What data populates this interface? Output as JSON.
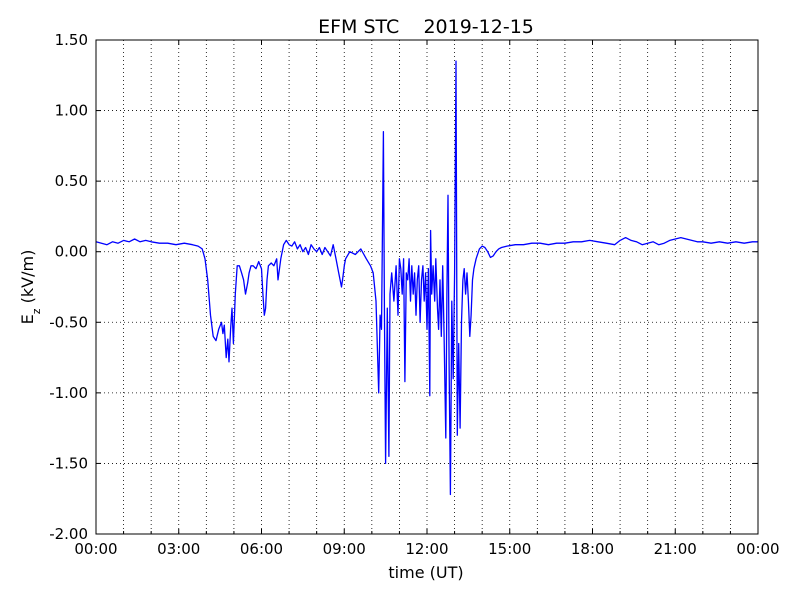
{
  "chart_data": {
    "type": "line",
    "title": "EFM STC    2019-12-15",
    "xlabel": "time (UT)",
    "ylabel_main": "E",
    "ylabel_sub": "z",
    "ylabel_rest": " (kV/m)",
    "xlim": [
      0,
      24
    ],
    "ylim": [
      -2.0,
      1.5
    ],
    "grid": true,
    "x_ticks": [
      {
        "v": 0,
        "label": "00:00"
      },
      {
        "v": 3,
        "label": "03:00"
      },
      {
        "v": 6,
        "label": "06:00"
      },
      {
        "v": 9,
        "label": "09:00"
      },
      {
        "v": 12,
        "label": "12:00"
      },
      {
        "v": 15,
        "label": "15:00"
      },
      {
        "v": 18,
        "label": "18:00"
      },
      {
        "v": 21,
        "label": "21:00"
      },
      {
        "v": 24,
        "label": "00:00"
      }
    ],
    "y_ticks": [
      {
        "v": 1.5,
        "label": "1.50"
      },
      {
        "v": 1.0,
        "label": "1.00"
      },
      {
        "v": 0.5,
        "label": "0.50"
      },
      {
        "v": 0.0,
        "label": "0.00"
      },
      {
        "v": -0.5,
        "label": "-0.50"
      },
      {
        "v": -1.0,
        "label": "-1.00"
      },
      {
        "v": -1.5,
        "label": "-1.50"
      },
      {
        "v": -2.0,
        "label": "-2.00"
      }
    ],
    "series": [
      {
        "color": "#0000ff",
        "points": [
          [
            0.0,
            0.07
          ],
          [
            0.2,
            0.06
          ],
          [
            0.4,
            0.05
          ],
          [
            0.6,
            0.07
          ],
          [
            0.8,
            0.06
          ],
          [
            1.0,
            0.08
          ],
          [
            1.2,
            0.07
          ],
          [
            1.4,
            0.09
          ],
          [
            1.6,
            0.07
          ],
          [
            1.8,
            0.08
          ],
          [
            2.0,
            0.07
          ],
          [
            2.3,
            0.06
          ],
          [
            2.6,
            0.06
          ],
          [
            2.9,
            0.05
          ],
          [
            3.2,
            0.06
          ],
          [
            3.5,
            0.05
          ],
          [
            3.7,
            0.04
          ],
          [
            3.85,
            0.02
          ],
          [
            3.95,
            -0.05
          ],
          [
            4.05,
            -0.2
          ],
          [
            4.15,
            -0.45
          ],
          [
            4.25,
            -0.6
          ],
          [
            4.35,
            -0.63
          ],
          [
            4.45,
            -0.55
          ],
          [
            4.55,
            -0.5
          ],
          [
            4.6,
            -0.58
          ],
          [
            4.65,
            -0.52
          ],
          [
            4.72,
            -0.75
          ],
          [
            4.78,
            -0.62
          ],
          [
            4.82,
            -0.78
          ],
          [
            4.88,
            -0.55
          ],
          [
            4.93,
            -0.4
          ],
          [
            4.98,
            -0.65
          ],
          [
            5.05,
            -0.3
          ],
          [
            5.12,
            -0.1
          ],
          [
            5.2,
            -0.1
          ],
          [
            5.28,
            -0.15
          ],
          [
            5.35,
            -0.2
          ],
          [
            5.42,
            -0.3
          ],
          [
            5.5,
            -0.22
          ],
          [
            5.55,
            -0.15
          ],
          [
            5.62,
            -0.1
          ],
          [
            5.7,
            -0.1
          ],
          [
            5.8,
            -0.12
          ],
          [
            5.9,
            -0.07
          ],
          [
            6.0,
            -0.12
          ],
          [
            6.05,
            -0.3
          ],
          [
            6.1,
            -0.45
          ],
          [
            6.15,
            -0.4
          ],
          [
            6.2,
            -0.2
          ],
          [
            6.25,
            -0.1
          ],
          [
            6.35,
            -0.08
          ],
          [
            6.45,
            -0.1
          ],
          [
            6.55,
            -0.05
          ],
          [
            6.6,
            -0.2
          ],
          [
            6.7,
            -0.05
          ],
          [
            6.8,
            0.05
          ],
          [
            6.9,
            0.08
          ],
          [
            7.0,
            0.05
          ],
          [
            7.1,
            0.04
          ],
          [
            7.2,
            0.07
          ],
          [
            7.3,
            0.02
          ],
          [
            7.4,
            0.05
          ],
          [
            7.5,
            0.0
          ],
          [
            7.6,
            0.03
          ],
          [
            7.7,
            -0.02
          ],
          [
            7.8,
            0.05
          ],
          [
            7.9,
            0.02
          ],
          [
            8.0,
            0.0
          ],
          [
            8.1,
            0.03
          ],
          [
            8.2,
            -0.02
          ],
          [
            8.3,
            0.03
          ],
          [
            8.4,
            0.0
          ],
          [
            8.5,
            -0.03
          ],
          [
            8.6,
            0.05
          ],
          [
            8.7,
            -0.05
          ],
          [
            8.8,
            -0.15
          ],
          [
            8.9,
            -0.25
          ],
          [
            8.95,
            -0.18
          ],
          [
            9.0,
            -0.1
          ],
          [
            9.05,
            -0.05
          ],
          [
            9.2,
            0.0
          ],
          [
            9.4,
            -0.02
          ],
          [
            9.6,
            0.02
          ],
          [
            9.8,
            -0.05
          ],
          [
            9.95,
            -0.1
          ],
          [
            10.05,
            -0.15
          ],
          [
            10.15,
            -0.35
          ],
          [
            10.25,
            -1.0
          ],
          [
            10.3,
            -0.45
          ],
          [
            10.35,
            -0.55
          ],
          [
            10.42,
            0.85
          ],
          [
            10.46,
            -0.5
          ],
          [
            10.5,
            -1.5
          ],
          [
            10.56,
            -0.4
          ],
          [
            10.62,
            -1.45
          ],
          [
            10.66,
            -0.3
          ],
          [
            10.72,
            -0.15
          ],
          [
            10.8,
            -0.35
          ],
          [
            10.88,
            -0.1
          ],
          [
            10.95,
            -0.45
          ],
          [
            11.0,
            -0.05
          ],
          [
            11.05,
            -0.12
          ],
          [
            11.1,
            -0.3
          ],
          [
            11.15,
            -0.05
          ],
          [
            11.2,
            -0.92
          ],
          [
            11.25,
            -0.15
          ],
          [
            11.3,
            -0.2
          ],
          [
            11.35,
            -0.05
          ],
          [
            11.4,
            -0.35
          ],
          [
            11.45,
            -0.1
          ],
          [
            11.5,
            -0.3
          ],
          [
            11.55,
            -0.15
          ],
          [
            11.6,
            -0.45
          ],
          [
            11.65,
            -0.2
          ],
          [
            11.7,
            -0.1
          ],
          [
            11.75,
            -0.5
          ],
          [
            11.8,
            -0.2
          ],
          [
            11.85,
            -0.1
          ],
          [
            11.9,
            -0.35
          ],
          [
            11.95,
            -0.15
          ],
          [
            12.0,
            -0.55
          ],
          [
            12.05,
            -0.12
          ],
          [
            12.1,
            -1.02
          ],
          [
            12.13,
            0.15
          ],
          [
            12.17,
            -0.3
          ],
          [
            12.22,
            -0.1
          ],
          [
            12.28,
            -0.35
          ],
          [
            12.32,
            -0.05
          ],
          [
            12.38,
            -0.4
          ],
          [
            12.42,
            -0.55
          ],
          [
            12.47,
            -0.2
          ],
          [
            12.52,
            -0.6
          ],
          [
            12.57,
            -0.1
          ],
          [
            12.62,
            -0.6
          ],
          [
            12.68,
            -1.32
          ],
          [
            12.72,
            -0.3
          ],
          [
            12.76,
            0.4
          ],
          [
            12.8,
            -0.8
          ],
          [
            12.85,
            -1.72
          ],
          [
            12.9,
            -0.35
          ],
          [
            12.95,
            -0.9
          ],
          [
            13.0,
            -0.15
          ],
          [
            13.05,
            1.35
          ],
          [
            13.1,
            -1.3
          ],
          [
            13.15,
            -0.65
          ],
          [
            13.2,
            -1.25
          ],
          [
            13.25,
            -0.5
          ],
          [
            13.3,
            -0.2
          ],
          [
            13.35,
            -0.12
          ],
          [
            13.4,
            -0.3
          ],
          [
            13.45,
            -0.15
          ],
          [
            13.5,
            -0.35
          ],
          [
            13.55,
            -0.6
          ],
          [
            13.6,
            -0.45
          ],
          [
            13.65,
            -0.2
          ],
          [
            13.7,
            -0.12
          ],
          [
            13.78,
            -0.05
          ],
          [
            13.9,
            0.02
          ],
          [
            14.0,
            0.04
          ],
          [
            14.1,
            0.03
          ],
          [
            14.2,
            0.0
          ],
          [
            14.3,
            -0.04
          ],
          [
            14.4,
            -0.03
          ],
          [
            14.5,
            0.0
          ],
          [
            14.6,
            0.02
          ],
          [
            14.7,
            0.03
          ],
          [
            14.9,
            0.04
          ],
          [
            15.2,
            0.05
          ],
          [
            15.5,
            0.05
          ],
          [
            15.8,
            0.06
          ],
          [
            16.1,
            0.06
          ],
          [
            16.4,
            0.05
          ],
          [
            16.7,
            0.06
          ],
          [
            17.0,
            0.06
          ],
          [
            17.3,
            0.07
          ],
          [
            17.6,
            0.07
          ],
          [
            17.9,
            0.08
          ],
          [
            18.2,
            0.07
          ],
          [
            18.5,
            0.06
          ],
          [
            18.8,
            0.05
          ],
          [
            19.0,
            0.08
          ],
          [
            19.2,
            0.1
          ],
          [
            19.4,
            0.08
          ],
          [
            19.6,
            0.07
          ],
          [
            19.8,
            0.05
          ],
          [
            20.0,
            0.06
          ],
          [
            20.2,
            0.07
          ],
          [
            20.4,
            0.05
          ],
          [
            20.6,
            0.06
          ],
          [
            20.8,
            0.08
          ],
          [
            21.0,
            0.09
          ],
          [
            21.2,
            0.1
          ],
          [
            21.4,
            0.09
          ],
          [
            21.6,
            0.08
          ],
          [
            21.8,
            0.07
          ],
          [
            22.0,
            0.07
          ],
          [
            22.3,
            0.06
          ],
          [
            22.6,
            0.07
          ],
          [
            22.9,
            0.06
          ],
          [
            23.2,
            0.07
          ],
          [
            23.5,
            0.06
          ],
          [
            23.8,
            0.07
          ],
          [
            24.0,
            0.07
          ]
        ]
      }
    ]
  }
}
